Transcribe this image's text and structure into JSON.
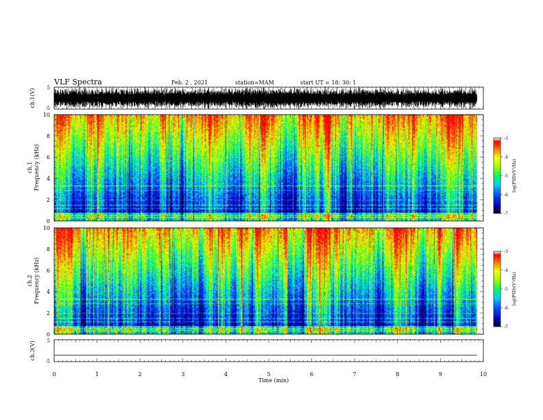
{
  "header": {
    "title": "VLF Spectra",
    "date": "Feb. 2 , 2021",
    "station": "station=MAM",
    "start": "start UT = 18: 30: 1"
  },
  "chart_data": {
    "type": "heatmap",
    "x_axis": {
      "label": "Time (min)",
      "range": [
        0,
        10
      ],
      "ticks": [
        "0",
        "1",
        "2",
        "3",
        "4",
        "5",
        "6",
        "7",
        "8",
        "9",
        "10"
      ]
    },
    "panels": [
      {
        "id": "ch1-waveform",
        "type": "line",
        "ylabel": "ch.1(V)",
        "ylim": [
          -5,
          5
        ],
        "ticks": [
          "5",
          "-5"
        ],
        "data_end_min": 9.85
      },
      {
        "id": "ch1-spectrogram",
        "type": "heatmap",
        "ylabel_line1": "ch.1",
        "ylabel_line2": "Frequency (kHz)",
        "ylim": [
          0,
          10
        ],
        "ticks": [
          "0",
          "2",
          "4",
          "6",
          "8",
          "10"
        ],
        "data_end_min": 9.85,
        "colorbar": {
          "label": "log(PSD)(V²/Hz)",
          "range": [
            -7,
            -3
          ],
          "ticks": [
            "-3",
            "-4",
            "-5",
            "-6",
            "-7"
          ]
        }
      },
      {
        "id": "ch2-spectrogram",
        "type": "heatmap",
        "ylabel_line1": "ch.2",
        "ylabel_line2": "Frequency (kHz)",
        "ylim": [
          0,
          10
        ],
        "ticks": [
          "0",
          "2",
          "4",
          "6",
          "8",
          "10"
        ],
        "data_end_min": 9.85,
        "colorbar": {
          "label": "log(PSD)(V²/Hz)",
          "range": [
            -7,
            -3
          ],
          "ticks": [
            "-3",
            "-4",
            "-5",
            "-6",
            "-7"
          ]
        }
      },
      {
        "id": "ch3-waveform",
        "type": "line",
        "ylabel": "ch.3(V)",
        "ylim": [
          -5,
          5
        ],
        "ticks": [
          "5",
          "-5"
        ],
        "constant_value": -2,
        "data_end_min": 9.85
      }
    ]
  }
}
